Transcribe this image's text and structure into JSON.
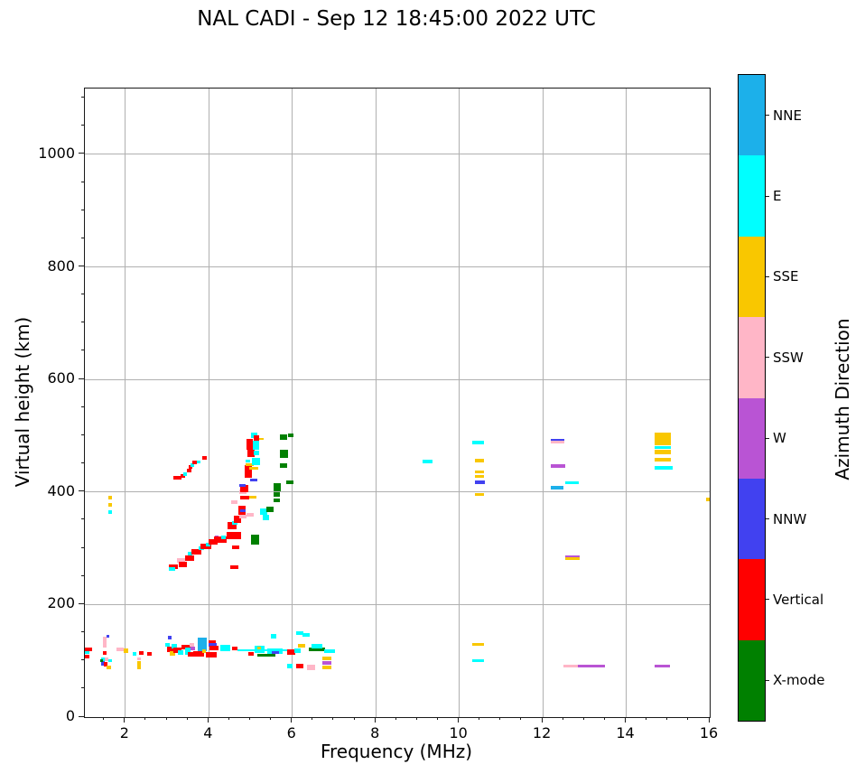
{
  "title": "NAL CADI - Sep 12 18:45:00 2022 UTC",
  "x_axis": {
    "label": "Frequency (MHz)",
    "ticks": [
      2,
      4,
      6,
      8,
      10,
      12,
      14,
      16
    ],
    "minor_step": 0.5
  },
  "y_axis": {
    "label": "Virtual height (km)",
    "ticks": [
      0,
      200,
      400,
      600,
      800,
      1000
    ],
    "minor_step": 50
  },
  "colorbar": {
    "title": "Azimuth Direction",
    "segments": [
      {
        "label": "NNE",
        "color": "#1cb0ea"
      },
      {
        "label": "E",
        "color": "#00ffff"
      },
      {
        "label": "SSE",
        "color": "#f9c700"
      },
      {
        "label": "SSW",
        "color": "#ffb6c7"
      },
      {
        "label": "W",
        "color": "#b954d4"
      },
      {
        "label": "NNW",
        "color": "#4141f0"
      },
      {
        "label": "Vertical",
        "color": "#ff0000"
      },
      {
        "label": "X-mode",
        "color": "#008000"
      }
    ]
  },
  "chart_data": {
    "type": "scatter",
    "title": "NAL CADI - Sep 12 18:45:00 2022 UTC",
    "xlabel": "Frequency (MHz)",
    "ylabel": "Virtual height (km)",
    "xlim": [
      1.03,
      16
    ],
    "ylim": [
      0,
      1117
    ],
    "grid": true,
    "legend_position": "right-colorbar",
    "categories": [
      "NNE",
      "E",
      "SSE",
      "SSW",
      "W",
      "NNW",
      "V",
      "X"
    ],
    "colors": {
      "NNE": "#1cb0ea",
      "E": "#00ffff",
      "SSE": "#f9c700",
      "SSW": "#ffb6c7",
      "W": "#b954d4",
      "NNW": "#4141f0",
      "V": "#ff0000",
      "X": "#008000"
    },
    "point_columns": [
      "freq_MHz",
      "virtual_height_km",
      "width_px",
      "height_px",
      "azimuth"
    ],
    "points": [
      [
        1.1,
        120,
        9,
        4,
        "V"
      ],
      [
        1.07,
        114,
        6,
        3,
        "E"
      ],
      [
        1.08,
        108,
        5,
        4,
        "V"
      ],
      [
        1.5,
        140,
        4,
        4,
        "SSW"
      ],
      [
        1.5,
        133,
        4,
        4,
        "SSW"
      ],
      [
        1.5,
        126,
        4,
        4,
        "SSW"
      ],
      [
        1.5,
        114,
        4,
        4,
        "V"
      ],
      [
        1.58,
        144,
        3,
        3,
        "NNW"
      ],
      [
        1.46,
        103,
        4,
        4,
        "E"
      ],
      [
        1.56,
        103,
        4,
        4,
        "SSW"
      ],
      [
        1.46,
        96,
        4,
        5,
        "NNW"
      ],
      [
        1.53,
        94,
        4,
        5,
        "V"
      ],
      [
        1.6,
        89,
        5,
        4,
        "SSE"
      ],
      [
        1.63,
        101,
        4,
        3,
        "E"
      ],
      [
        1.42,
        100,
        3,
        3,
        "X"
      ],
      [
        1.88,
        121,
        8,
        4,
        "SSW"
      ],
      [
        2.02,
        118,
        5,
        5,
        "SSE"
      ],
      [
        2.32,
        103,
        4,
        3,
        "SSW"
      ],
      [
        2.32,
        97,
        4,
        4,
        "SSE"
      ],
      [
        2.32,
        89,
        4,
        5,
        "SSE"
      ],
      [
        2.22,
        112,
        4,
        4,
        "E"
      ],
      [
        2.38,
        114,
        5,
        4,
        "V"
      ],
      [
        2.58,
        112,
        5,
        4,
        "V"
      ],
      [
        3.02,
        128,
        5,
        4,
        "E"
      ],
      [
        3.06,
        141,
        4,
        4,
        "NNW"
      ],
      [
        3.08,
        120,
        8,
        6,
        "V"
      ],
      [
        3.12,
        113,
        6,
        5,
        "SSE"
      ],
      [
        3.18,
        126,
        6,
        5,
        "E"
      ],
      [
        3.25,
        119,
        9,
        6,
        "V"
      ],
      [
        3.33,
        114,
        6,
        5,
        "E"
      ],
      [
        3.45,
        124,
        10,
        5,
        "V"
      ],
      [
        3.5,
        117,
        6,
        8,
        "E"
      ],
      [
        3.58,
        112,
        8,
        5,
        "V"
      ],
      [
        3.6,
        128,
        5,
        4,
        "SSW"
      ],
      [
        3.62,
        122,
        5,
        4,
        "W"
      ],
      [
        3.75,
        112,
        12,
        6,
        "V"
      ],
      [
        3.85,
        129,
        10,
        15,
        "NNE"
      ],
      [
        3.88,
        117,
        4,
        4,
        "SSE"
      ],
      [
        4.08,
        133,
        8,
        4,
        "V"
      ],
      [
        4.1,
        128,
        9,
        4,
        "NNW"
      ],
      [
        4.12,
        122,
        10,
        5,
        "V"
      ],
      [
        4.05,
        111,
        12,
        6,
        "V"
      ],
      [
        4.4,
        123,
        11,
        7,
        "E"
      ],
      [
        4.62,
        122,
        6,
        4,
        "V"
      ],
      [
        5.4,
        118,
        66,
        2,
        "E"
      ],
      [
        5.0,
        112,
        6,
        4,
        "V"
      ],
      [
        5.22,
        121,
        11,
        8,
        "E"
      ],
      [
        5.2,
        122,
        4,
        3,
        "SSE"
      ],
      [
        5.38,
        110,
        20,
        3,
        "X"
      ],
      [
        5.58,
        117,
        17,
        6,
        "E"
      ],
      [
        5.6,
        114,
        8,
        3,
        "NNW"
      ],
      [
        5.55,
        144,
        6,
        5,
        "E"
      ],
      [
        5.98,
        116,
        9,
        6,
        "V"
      ],
      [
        6.12,
        118,
        7,
        5,
        "E"
      ],
      [
        6.22,
        127,
        8,
        4,
        "SSE"
      ],
      [
        6.6,
        121,
        18,
        4,
        "X"
      ],
      [
        6.58,
        126,
        12,
        5,
        "E"
      ],
      [
        6.9,
        117,
        12,
        4,
        "E"
      ],
      [
        6.18,
        150,
        8,
        4,
        "E"
      ],
      [
        6.33,
        146,
        8,
        4,
        "E"
      ],
      [
        6.18,
        90,
        8,
        5,
        "V"
      ],
      [
        5.95,
        90,
        6,
        5,
        "E"
      ],
      [
        6.45,
        88,
        9,
        6,
        "SSW"
      ],
      [
        6.82,
        104,
        10,
        4,
        "SSE"
      ],
      [
        6.82,
        96,
        10,
        4,
        "W"
      ],
      [
        6.82,
        89,
        10,
        4,
        "SSE"
      ],
      [
        3.15,
        268,
        10,
        5,
        "V"
      ],
      [
        3.12,
        263,
        7,
        4,
        "E"
      ],
      [
        3.33,
        278,
        9,
        5,
        "SSW"
      ],
      [
        3.38,
        272,
        9,
        6,
        "V"
      ],
      [
        3.53,
        282,
        10,
        6,
        "V"
      ],
      [
        3.55,
        290,
        5,
        4,
        "E"
      ],
      [
        3.7,
        293,
        11,
        6,
        "V"
      ],
      [
        3.82,
        300,
        6,
        4,
        "E"
      ],
      [
        3.92,
        303,
        12,
        6,
        "V"
      ],
      [
        3.98,
        306,
        5,
        4,
        "E"
      ],
      [
        4.1,
        312,
        10,
        6,
        "V"
      ],
      [
        4.18,
        319,
        4,
        4,
        "W"
      ],
      [
        4.28,
        316,
        14,
        7,
        "V"
      ],
      [
        4.36,
        319,
        5,
        4,
        "E"
      ],
      [
        4.6,
        323,
        16,
        8,
        "V"
      ],
      [
        4.62,
        266,
        9,
        4,
        "V"
      ],
      [
        4.65,
        302,
        8,
        4,
        "V"
      ],
      [
        4.55,
        340,
        10,
        8,
        "V"
      ],
      [
        4.62,
        345,
        6,
        4,
        "E"
      ],
      [
        4.68,
        352,
        8,
        8,
        "V"
      ],
      [
        4.82,
        356,
        8,
        4,
        "SSW"
      ],
      [
        4.8,
        368,
        8,
        10,
        "V"
      ],
      [
        4.82,
        367,
        6,
        3,
        "NNW"
      ],
      [
        4.98,
        360,
        8,
        4,
        "SSW"
      ],
      [
        4.62,
        382,
        7,
        4,
        "SSW"
      ],
      [
        4.85,
        390,
        10,
        4,
        "V"
      ],
      [
        5.06,
        390,
        8,
        3,
        "SSE"
      ],
      [
        4.82,
        400,
        8,
        5,
        "SSW"
      ],
      [
        4.85,
        406,
        9,
        8,
        "V"
      ],
      [
        4.8,
        411,
        7,
        3,
        "NNW"
      ],
      [
        4.95,
        437,
        8,
        14,
        "V"
      ],
      [
        5.08,
        442,
        10,
        3,
        "SSE"
      ],
      [
        4.98,
        448,
        9,
        3,
        "SSE"
      ],
      [
        5.12,
        454,
        9,
        8,
        "E"
      ],
      [
        4.93,
        455,
        5,
        3,
        "E"
      ],
      [
        5.02,
        468,
        8,
        8,
        "V"
      ],
      [
        5.15,
        470,
        6,
        5,
        "E"
      ],
      [
        4.97,
        484,
        7,
        12,
        "V"
      ],
      [
        5.12,
        483,
        7,
        10,
        "E"
      ],
      [
        5.24,
        494,
        7,
        2,
        "SSE"
      ],
      [
        5.08,
        500,
        7,
        6,
        "E"
      ],
      [
        5.14,
        496,
        6,
        6,
        "V"
      ],
      [
        5.08,
        422,
        8,
        3,
        "NNW"
      ],
      [
        3.25,
        426,
        9,
        4,
        "V"
      ],
      [
        3.38,
        429,
        5,
        4,
        "V"
      ],
      [
        3.43,
        432,
        4,
        4,
        "E"
      ],
      [
        3.52,
        438,
        5,
        4,
        "V"
      ],
      [
        3.56,
        445,
        4,
        4,
        "V"
      ],
      [
        3.61,
        448,
        4,
        4,
        "E"
      ],
      [
        3.66,
        452,
        5,
        4,
        "V"
      ],
      [
        3.76,
        454,
        4,
        3,
        "E"
      ],
      [
        3.9,
        460,
        5,
        4,
        "V"
      ],
      [
        1.64,
        390,
        4,
        4,
        "SSE"
      ],
      [
        1.64,
        377,
        4,
        4,
        "SSE"
      ],
      [
        1.64,
        364,
        4,
        4,
        "E"
      ],
      [
        5.1,
        315,
        9,
        11,
        "X"
      ],
      [
        5.32,
        365,
        8,
        7,
        "E"
      ],
      [
        5.47,
        369,
        8,
        6,
        "X"
      ],
      [
        5.36,
        354,
        7,
        6,
        "E"
      ],
      [
        5.62,
        385,
        7,
        4,
        "X"
      ],
      [
        5.63,
        409,
        8,
        9,
        "X"
      ],
      [
        5.62,
        396,
        7,
        5,
        "X"
      ],
      [
        5.95,
        417,
        8,
        4,
        "X"
      ],
      [
        5.8,
        468,
        9,
        9,
        "X"
      ],
      [
        5.78,
        497,
        8,
        6,
        "X"
      ],
      [
        5.78,
        447,
        8,
        5,
        "X"
      ],
      [
        5.97,
        501,
        6,
        4,
        "X"
      ],
      [
        9.25,
        454,
        11,
        4,
        "E"
      ],
      [
        10.45,
        488,
        13,
        4,
        "E"
      ],
      [
        10.48,
        456,
        10,
        4,
        "SSE"
      ],
      [
        10.48,
        435,
        10,
        3,
        "SSE"
      ],
      [
        10.48,
        427,
        10,
        3,
        "SSE"
      ],
      [
        10.5,
        417,
        11,
        4,
        "NNW"
      ],
      [
        10.48,
        395,
        10,
        3,
        "SSE"
      ],
      [
        10.45,
        129,
        13,
        3,
        "SSE"
      ],
      [
        10.45,
        101,
        13,
        3,
        "E"
      ],
      [
        12.35,
        492,
        15,
        3,
        "NNW"
      ],
      [
        12.35,
        488,
        15,
        3,
        "SSW"
      ],
      [
        12.37,
        446,
        16,
        4,
        "W"
      ],
      [
        12.7,
        417,
        15,
        3,
        "E"
      ],
      [
        12.35,
        407,
        14,
        4,
        "NNE"
      ],
      [
        12.71,
        285,
        16,
        3,
        "W"
      ],
      [
        12.71,
        282,
        16,
        3,
        "SSE"
      ],
      [
        12.66,
        90,
        16,
        3,
        "SSW"
      ],
      [
        13.17,
        90,
        30,
        3,
        "W"
      ],
      [
        14.87,
        90,
        17,
        3,
        "W"
      ],
      [
        14.87,
        494,
        18,
        14,
        "SSE"
      ],
      [
        14.87,
        479,
        18,
        3,
        "E"
      ],
      [
        14.87,
        471,
        18,
        5,
        "SSE"
      ],
      [
        14.87,
        458,
        18,
        4,
        "SSE"
      ],
      [
        14.9,
        443,
        20,
        4,
        "E"
      ],
      [
        15.97,
        387,
        6,
        4,
        "SSE"
      ]
    ]
  }
}
